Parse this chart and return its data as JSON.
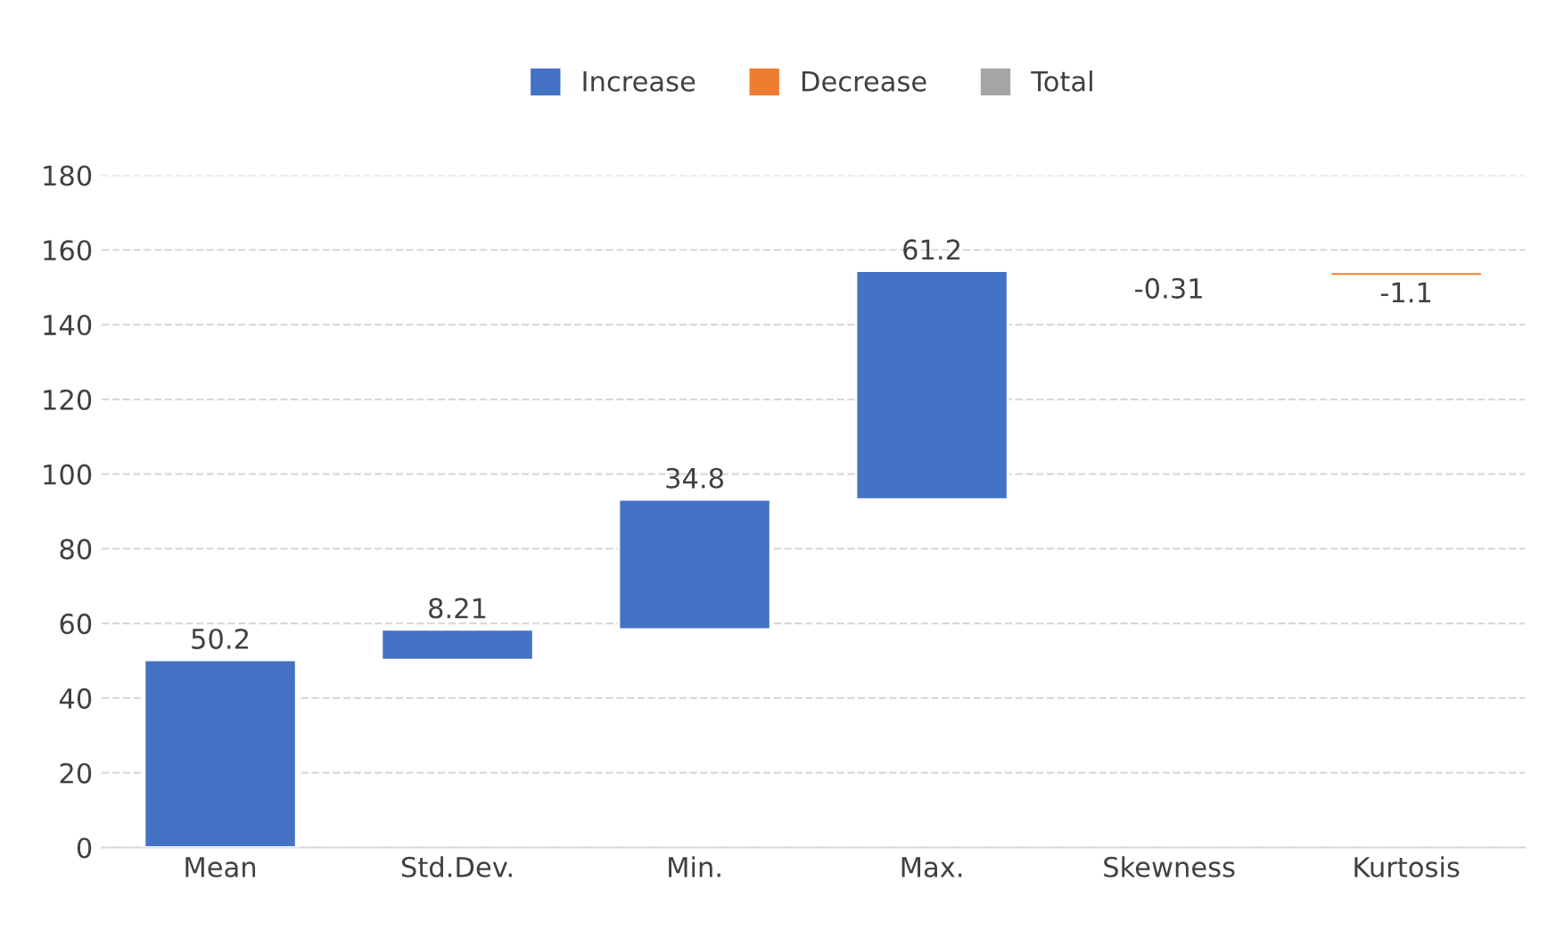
{
  "chart_data": {
    "type": "bar",
    "categories": [
      "Mean",
      "Std.Dev.",
      "Min.",
      "Max.",
      "Skewness",
      "Kurtosis"
    ],
    "series": [
      {
        "name": "Increase",
        "color": "#4472c4",
        "values": [
          50.2,
          8.21,
          34.8,
          61.2,
          null,
          null
        ],
        "base": [
          0,
          50.2,
          58.41,
          93.21,
          null,
          null
        ]
      },
      {
        "name": "Decrease",
        "color": "#ed7d31",
        "values": [
          null,
          null,
          null,
          null,
          -0.31,
          -1.1
        ],
        "base": [
          null,
          null,
          null,
          null,
          154.41,
          154.1
        ]
      },
      {
        "name": "Total",
        "color": "#a5a5a5",
        "values": [
          null,
          null,
          null,
          null,
          null,
          null
        ]
      }
    ],
    "ylim": [
      0,
      180
    ],
    "yticks": [
      0,
      20,
      40,
      60,
      80,
      100,
      120,
      140,
      160,
      180
    ],
    "grid": "y",
    "legend": "top",
    "data_labels": true
  }
}
